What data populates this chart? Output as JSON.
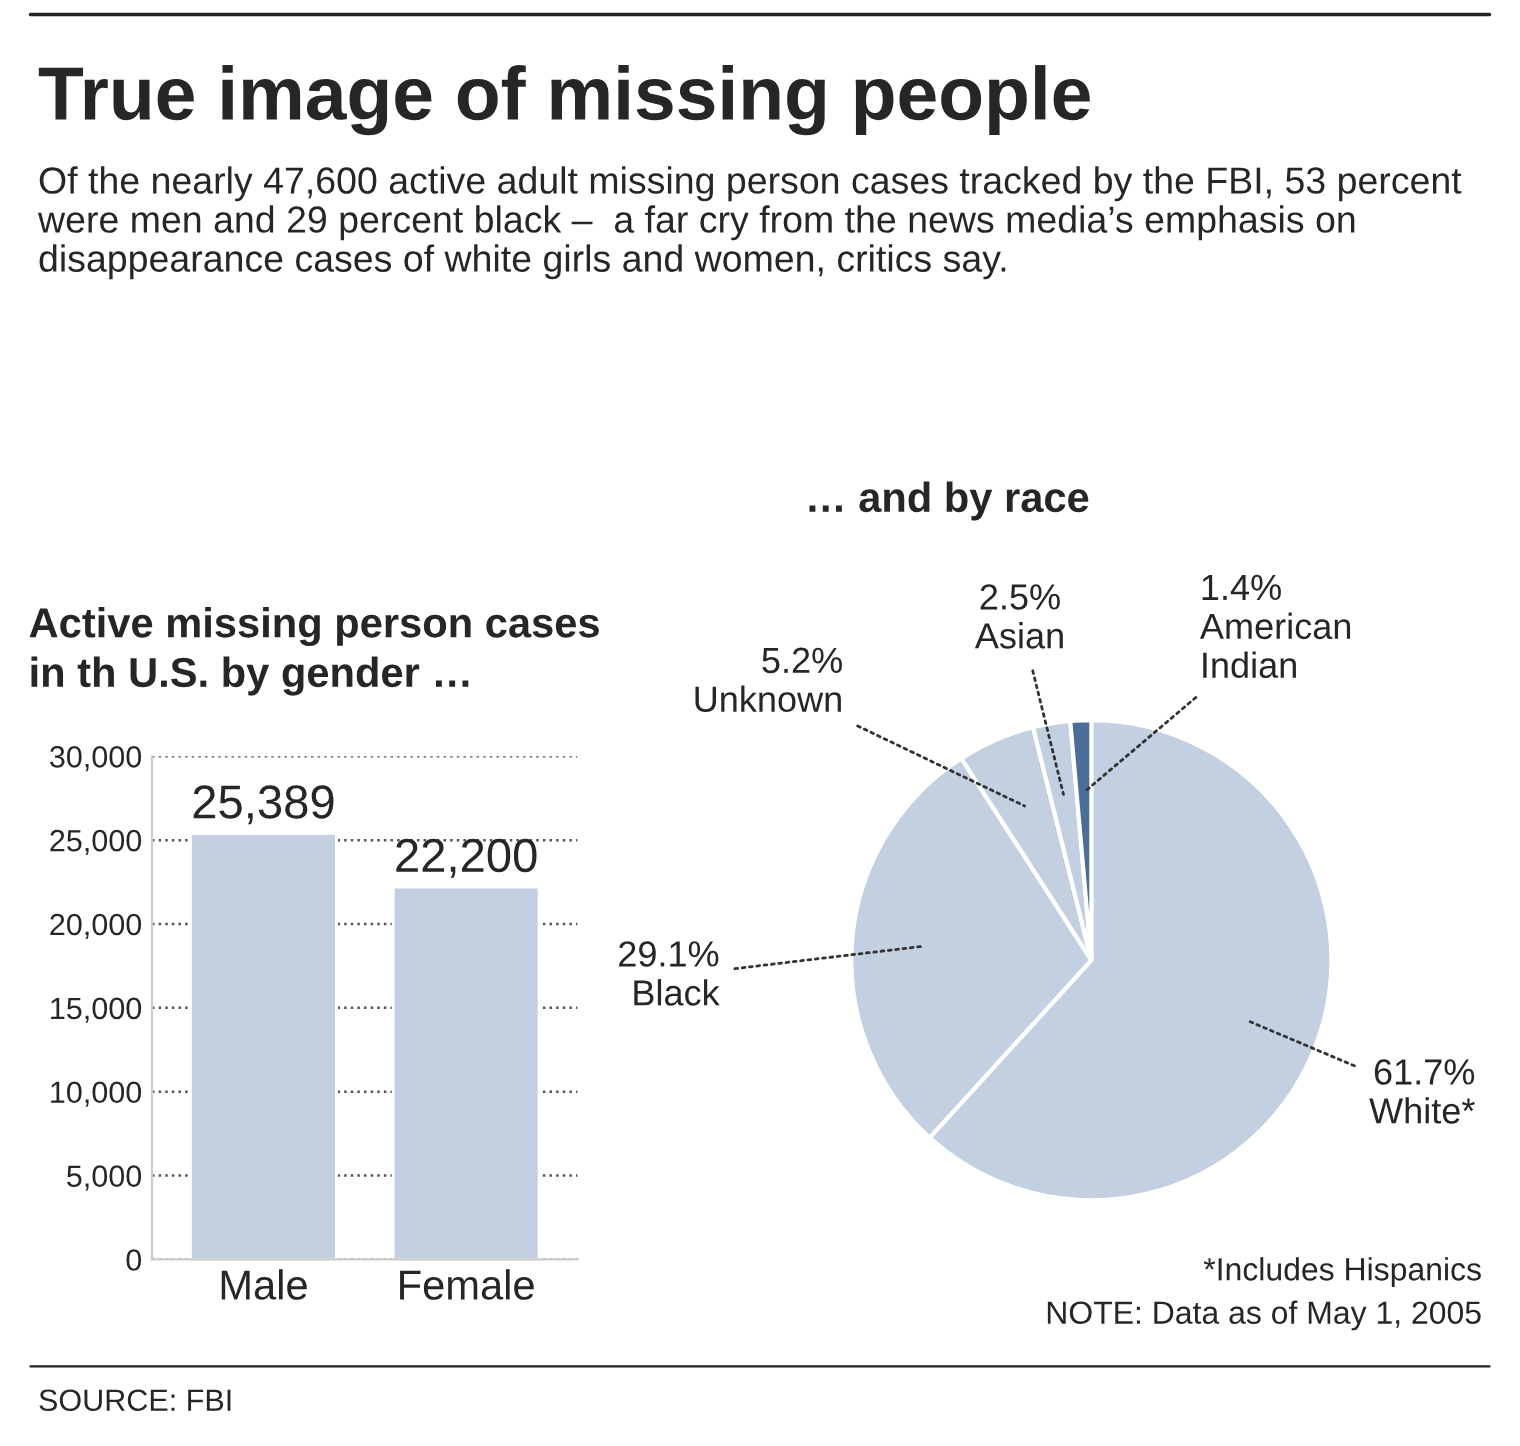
{
  "chart_data": [
    {
      "type": "other",
      "title": "True image of missing people",
      "subtitle": "Of the nearly 47,600 active adult missing person cases tracked by the FBI, 53 percent were men and 29 percent black –  a far cry from the news media’s emphasis on disappearance cases of white girls and women, critics say.",
      "annotations": [
        "SOURCE: FBI"
      ]
    },
    {
      "type": "bar",
      "title": "Active missing person cases\nin th U.S. by gender …",
      "categories": [
        "Male",
        "Female"
      ],
      "values": [
        25389,
        22200
      ],
      "value_labels": [
        "25,389",
        "22,200"
      ],
      "color": "#c3d0e2",
      "ylim": [
        0,
        30000
      ],
      "yticks": [
        0,
        {
          "value": 5000,
          "label": "5,000"
        },
        {
          "value": 10000,
          "label": "10,000"
        },
        {
          "value": 15000,
          "label": "15,000"
        },
        {
          "value": 20000,
          "label": "20,000"
        },
        {
          "value": 25000,
          "label": "25,000"
        },
        {
          "value": 30000,
          "label": "30,000"
        }
      ],
      "grid": "y",
      "legend": false
    },
    {
      "type": "pie",
      "title": "… and by race",
      "categories": [
        "White*",
        "Black",
        "Unknown",
        "Asian",
        "American\nIndian"
      ],
      "values": [
        61.7,
        29.1,
        5.2,
        2.5,
        1.4
      ],
      "value_labels": [
        "61.7%",
        "29.1%",
        "5.2%",
        "2.5%",
        "1.4%"
      ],
      "colors": [
        "#c3d0e2",
        "#c3d0e2",
        "#c3d0e2",
        "#c3d0e2",
        "#4a6e98"
      ],
      "annotations": [
        "*Includes Hispanics",
        "NOTE: Data as of May 1, 2005"
      ]
    }
  ]
}
